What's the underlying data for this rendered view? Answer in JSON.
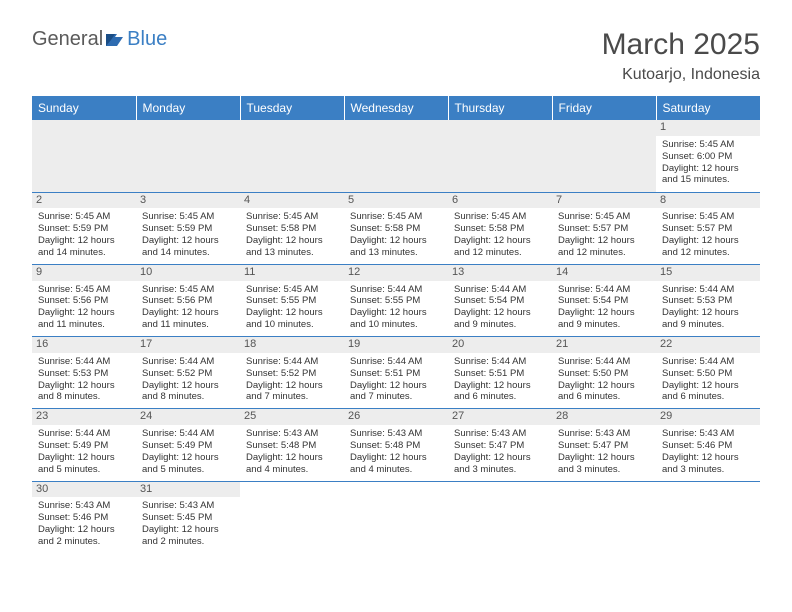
{
  "logo": {
    "text1": "General",
    "text2": "Blue"
  },
  "title": "March 2025",
  "location": "Kutoarjo, Indonesia",
  "colors": {
    "header_bg": "#3b7fc4",
    "header_text": "#ffffff",
    "daynum_bg": "#ededed",
    "border": "#3b7fc4",
    "logo_gray": "#5a5a5a",
    "logo_blue": "#3b7fc4"
  },
  "weekdays": [
    "Sunday",
    "Monday",
    "Tuesday",
    "Wednesday",
    "Thursday",
    "Friday",
    "Saturday"
  ],
  "weeks": [
    [
      null,
      null,
      null,
      null,
      null,
      null,
      {
        "n": "1",
        "sr": "Sunrise: 5:45 AM",
        "ss": "Sunset: 6:00 PM",
        "d1": "Daylight: 12 hours",
        "d2": "and 15 minutes."
      }
    ],
    [
      {
        "n": "2",
        "sr": "Sunrise: 5:45 AM",
        "ss": "Sunset: 5:59 PM",
        "d1": "Daylight: 12 hours",
        "d2": "and 14 minutes."
      },
      {
        "n": "3",
        "sr": "Sunrise: 5:45 AM",
        "ss": "Sunset: 5:59 PM",
        "d1": "Daylight: 12 hours",
        "d2": "and 14 minutes."
      },
      {
        "n": "4",
        "sr": "Sunrise: 5:45 AM",
        "ss": "Sunset: 5:58 PM",
        "d1": "Daylight: 12 hours",
        "d2": "and 13 minutes."
      },
      {
        "n": "5",
        "sr": "Sunrise: 5:45 AM",
        "ss": "Sunset: 5:58 PM",
        "d1": "Daylight: 12 hours",
        "d2": "and 13 minutes."
      },
      {
        "n": "6",
        "sr": "Sunrise: 5:45 AM",
        "ss": "Sunset: 5:58 PM",
        "d1": "Daylight: 12 hours",
        "d2": "and 12 minutes."
      },
      {
        "n": "7",
        "sr": "Sunrise: 5:45 AM",
        "ss": "Sunset: 5:57 PM",
        "d1": "Daylight: 12 hours",
        "d2": "and 12 minutes."
      },
      {
        "n": "8",
        "sr": "Sunrise: 5:45 AM",
        "ss": "Sunset: 5:57 PM",
        "d1": "Daylight: 12 hours",
        "d2": "and 12 minutes."
      }
    ],
    [
      {
        "n": "9",
        "sr": "Sunrise: 5:45 AM",
        "ss": "Sunset: 5:56 PM",
        "d1": "Daylight: 12 hours",
        "d2": "and 11 minutes."
      },
      {
        "n": "10",
        "sr": "Sunrise: 5:45 AM",
        "ss": "Sunset: 5:56 PM",
        "d1": "Daylight: 12 hours",
        "d2": "and 11 minutes."
      },
      {
        "n": "11",
        "sr": "Sunrise: 5:45 AM",
        "ss": "Sunset: 5:55 PM",
        "d1": "Daylight: 12 hours",
        "d2": "and 10 minutes."
      },
      {
        "n": "12",
        "sr": "Sunrise: 5:44 AM",
        "ss": "Sunset: 5:55 PM",
        "d1": "Daylight: 12 hours",
        "d2": "and 10 minutes."
      },
      {
        "n": "13",
        "sr": "Sunrise: 5:44 AM",
        "ss": "Sunset: 5:54 PM",
        "d1": "Daylight: 12 hours",
        "d2": "and 9 minutes."
      },
      {
        "n": "14",
        "sr": "Sunrise: 5:44 AM",
        "ss": "Sunset: 5:54 PM",
        "d1": "Daylight: 12 hours",
        "d2": "and 9 minutes."
      },
      {
        "n": "15",
        "sr": "Sunrise: 5:44 AM",
        "ss": "Sunset: 5:53 PM",
        "d1": "Daylight: 12 hours",
        "d2": "and 9 minutes."
      }
    ],
    [
      {
        "n": "16",
        "sr": "Sunrise: 5:44 AM",
        "ss": "Sunset: 5:53 PM",
        "d1": "Daylight: 12 hours",
        "d2": "and 8 minutes."
      },
      {
        "n": "17",
        "sr": "Sunrise: 5:44 AM",
        "ss": "Sunset: 5:52 PM",
        "d1": "Daylight: 12 hours",
        "d2": "and 8 minutes."
      },
      {
        "n": "18",
        "sr": "Sunrise: 5:44 AM",
        "ss": "Sunset: 5:52 PM",
        "d1": "Daylight: 12 hours",
        "d2": "and 7 minutes."
      },
      {
        "n": "19",
        "sr": "Sunrise: 5:44 AM",
        "ss": "Sunset: 5:51 PM",
        "d1": "Daylight: 12 hours",
        "d2": "and 7 minutes."
      },
      {
        "n": "20",
        "sr": "Sunrise: 5:44 AM",
        "ss": "Sunset: 5:51 PM",
        "d1": "Daylight: 12 hours",
        "d2": "and 6 minutes."
      },
      {
        "n": "21",
        "sr": "Sunrise: 5:44 AM",
        "ss": "Sunset: 5:50 PM",
        "d1": "Daylight: 12 hours",
        "d2": "and 6 minutes."
      },
      {
        "n": "22",
        "sr": "Sunrise: 5:44 AM",
        "ss": "Sunset: 5:50 PM",
        "d1": "Daylight: 12 hours",
        "d2": "and 6 minutes."
      }
    ],
    [
      {
        "n": "23",
        "sr": "Sunrise: 5:44 AM",
        "ss": "Sunset: 5:49 PM",
        "d1": "Daylight: 12 hours",
        "d2": "and 5 minutes."
      },
      {
        "n": "24",
        "sr": "Sunrise: 5:44 AM",
        "ss": "Sunset: 5:49 PM",
        "d1": "Daylight: 12 hours",
        "d2": "and 5 minutes."
      },
      {
        "n": "25",
        "sr": "Sunrise: 5:43 AM",
        "ss": "Sunset: 5:48 PM",
        "d1": "Daylight: 12 hours",
        "d2": "and 4 minutes."
      },
      {
        "n": "26",
        "sr": "Sunrise: 5:43 AM",
        "ss": "Sunset: 5:48 PM",
        "d1": "Daylight: 12 hours",
        "d2": "and 4 minutes."
      },
      {
        "n": "27",
        "sr": "Sunrise: 5:43 AM",
        "ss": "Sunset: 5:47 PM",
        "d1": "Daylight: 12 hours",
        "d2": "and 3 minutes."
      },
      {
        "n": "28",
        "sr": "Sunrise: 5:43 AM",
        "ss": "Sunset: 5:47 PM",
        "d1": "Daylight: 12 hours",
        "d2": "and 3 minutes."
      },
      {
        "n": "29",
        "sr": "Sunrise: 5:43 AM",
        "ss": "Sunset: 5:46 PM",
        "d1": "Daylight: 12 hours",
        "d2": "and 3 minutes."
      }
    ],
    [
      {
        "n": "30",
        "sr": "Sunrise: 5:43 AM",
        "ss": "Sunset: 5:46 PM",
        "d1": "Daylight: 12 hours",
        "d2": "and 2 minutes."
      },
      {
        "n": "31",
        "sr": "Sunrise: 5:43 AM",
        "ss": "Sunset: 5:45 PM",
        "d1": "Daylight: 12 hours",
        "d2": "and 2 minutes."
      },
      null,
      null,
      null,
      null,
      null
    ]
  ]
}
